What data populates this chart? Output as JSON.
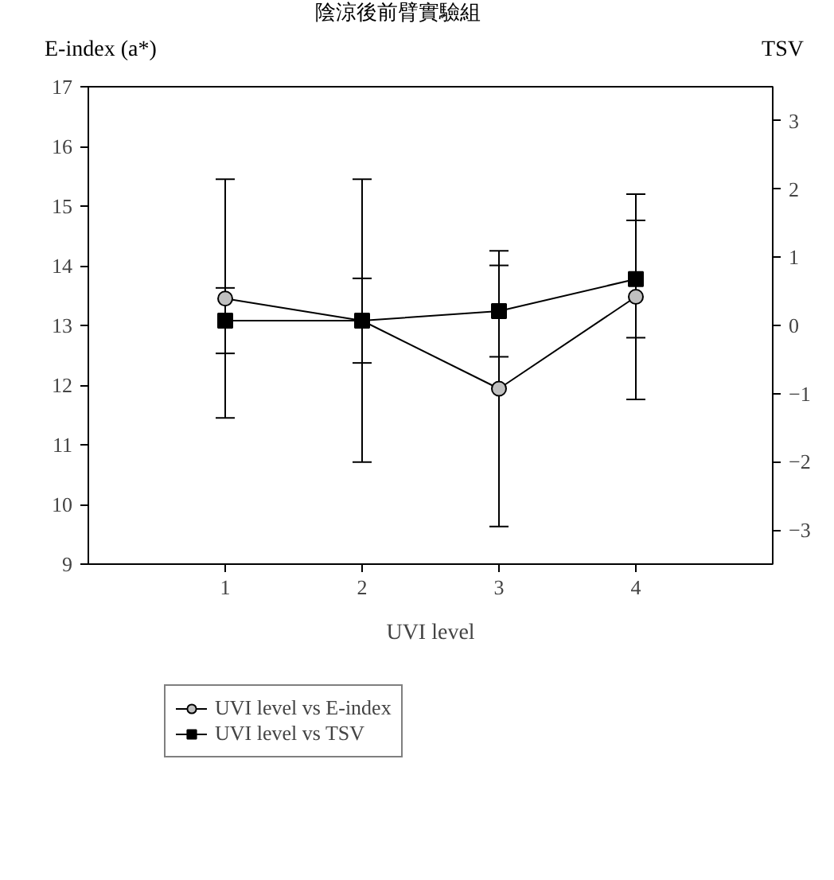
{
  "chart_data": {
    "type": "line",
    "title": "陰涼後前臂實驗組",
    "xlabel": "UVI level",
    "ylabel": "E-index (a*)",
    "y2label": "TSV",
    "x": [
      1,
      2,
      3,
      4
    ],
    "xlim": [
      0,
      5
    ],
    "xticks": [
      1,
      2,
      3,
      4
    ],
    "ylim": [
      9,
      17
    ],
    "yticks": [
      9,
      10,
      11,
      12,
      13,
      14,
      15,
      16,
      17
    ],
    "y2lim": [
      -3.5,
      3.5
    ],
    "y2ticks": [
      -3,
      -2,
      -1,
      0,
      1,
      2,
      3
    ],
    "series": [
      {
        "name": "UVI level vs E-index",
        "color": "#c0c0c0",
        "marker": "circle",
        "values": [
          13.45,
          13.08,
          11.94,
          13.48
        ],
        "errors": [
          2.0,
          2.37,
          2.31,
          1.72
        ]
      },
      {
        "name": "UVI level vs TSV",
        "color": "#000000",
        "marker": "square",
        "axis": "y2",
        "values": [
          0.07,
          0.07,
          0.21,
          0.68
        ],
        "errors": [
          0.48,
          0.62,
          0.67,
          0.86
        ]
      }
    ],
    "grid": false,
    "legend": "bottom",
    "line_style": "solid"
  }
}
